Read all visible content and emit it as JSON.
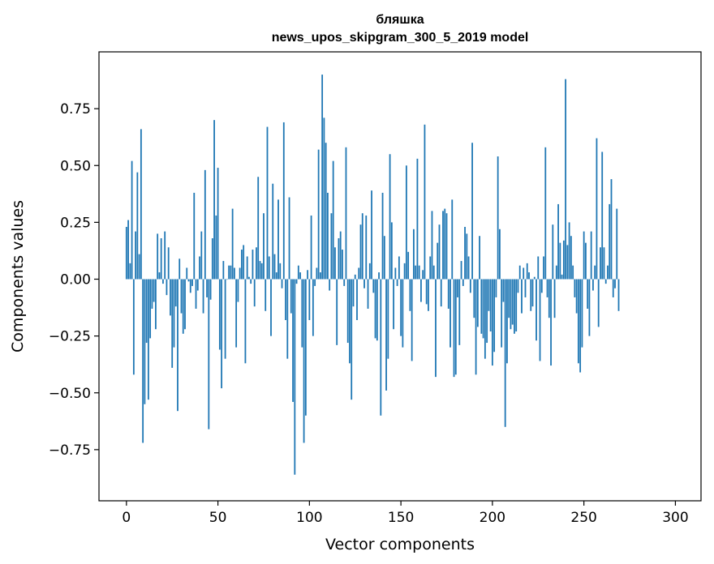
{
  "chart_data": {
    "type": "bar",
    "title_line1": "бляшка",
    "title_line2": "news_upos_skipgram_300_5_2019 model",
    "xlabel": "Vector components",
    "ylabel": "Components values",
    "xlim": [
      -15,
      314
    ],
    "ylim": [
      -0.975,
      1.0
    ],
    "xticks": [
      0,
      50,
      100,
      150,
      200,
      250,
      300
    ],
    "xtick_labels": [
      "0",
      "50",
      "100",
      "150",
      "200",
      "250",
      "300"
    ],
    "yticks": [
      -0.75,
      -0.5,
      -0.25,
      0.0,
      0.25,
      0.5,
      0.75
    ],
    "ytick_labels": [
      "−0.75",
      "−0.50",
      "−0.25",
      "0.00",
      "0.25",
      "0.50",
      "0.75"
    ],
    "bar_color": "#1f77b4",
    "values": [
      0.23,
      0.26,
      0.07,
      0.52,
      -0.42,
      0.21,
      0.47,
      0.11,
      0.66,
      -0.72,
      -0.55,
      -0.28,
      -0.53,
      -0.26,
      -0.13,
      -0.1,
      -0.22,
      0.2,
      0.03,
      0.18,
      -0.02,
      0.21,
      -0.07,
      0.14,
      -0.16,
      -0.39,
      -0.3,
      -0.12,
      -0.58,
      0.09,
      -0.15,
      -0.24,
      -0.22,
      0.05,
      -0.01,
      -0.06,
      -0.03,
      0.38,
      -0.13,
      -0.05,
      0.1,
      0.21,
      -0.15,
      0.48,
      -0.08,
      -0.66,
      -0.09,
      0.18,
      0.7,
      0.28,
      0.49,
      -0.31,
      -0.48,
      0.08,
      -0.35,
      0.0,
      0.06,
      0.06,
      0.31,
      0.05,
      -0.3,
      -0.1,
      0.05,
      0.13,
      0.15,
      -0.37,
      0.1,
      0.01,
      -0.02,
      0.13,
      -0.12,
      0.14,
      0.45,
      0.08,
      0.07,
      0.29,
      -0.14,
      0.67,
      0.1,
      -0.25,
      0.42,
      0.11,
      0.03,
      0.35,
      0.07,
      -0.04,
      0.69,
      -0.18,
      -0.35,
      0.36,
      -0.15,
      -0.54,
      -0.86,
      -0.02,
      0.06,
      0.03,
      -0.3,
      -0.72,
      -0.6,
      0.04,
      -0.18,
      0.28,
      -0.25,
      -0.03,
      0.05,
      0.57,
      0.03,
      0.9,
      0.71,
      0.6,
      0.38,
      -0.05,
      0.29,
      0.52,
      0.14,
      -0.29,
      0.18,
      0.21,
      0.13,
      -0.03,
      0.58,
      -0.28,
      -0.37,
      -0.53,
      -0.12,
      0.02,
      -0.18,
      0.05,
      0.24,
      0.29,
      -0.04,
      0.28,
      -0.13,
      0.07,
      0.39,
      -0.06,
      -0.26,
      -0.27,
      0.03,
      -0.6,
      0.38,
      0.19,
      -0.49,
      -0.35,
      0.55,
      0.25,
      -0.22,
      0.05,
      -0.03,
      0.1,
      -0.25,
      -0.3,
      0.07,
      0.5,
      0.12,
      -0.14,
      -0.36,
      0.22,
      0.06,
      0.53,
      0.06,
      -0.1,
      0.04,
      0.68,
      -0.11,
      -0.14,
      0.1,
      0.3,
      0.06,
      -0.43,
      0.16,
      0.24,
      -0.12,
      0.3,
      0.31,
      0.29,
      -0.13,
      -0.3,
      0.35,
      -0.43,
      -0.42,
      -0.08,
      -0.29,
      0.08,
      -0.03,
      0.23,
      0.2,
      0.1,
      -0.06,
      0.6,
      -0.17,
      -0.42,
      -0.21,
      0.19,
      -0.24,
      -0.26,
      -0.35,
      -0.28,
      -0.14,
      -0.23,
      -0.38,
      -0.32,
      -0.08,
      0.54,
      0.22,
      -0.3,
      -0.1,
      -0.65,
      -0.37,
      -0.17,
      -0.22,
      -0.2,
      -0.24,
      -0.23,
      -0.06,
      0.06,
      -0.15,
      0.05,
      -0.08,
      0.07,
      0.03,
      -0.14,
      -0.12,
      0.01,
      -0.27,
      0.1,
      -0.36,
      -0.06,
      0.1,
      0.58,
      -0.08,
      -0.17,
      -0.38,
      0.24,
      -0.17,
      0.06,
      0.33,
      0.16,
      0.02,
      0.17,
      0.88,
      0.15,
      0.25,
      0.19,
      0.06,
      -0.08,
      -0.15,
      -0.37,
      -0.41,
      -0.3,
      0.21,
      0.16,
      -0.13,
      -0.25,
      0.21,
      -0.05,
      0.06,
      0.62,
      -0.21,
      0.14,
      0.56,
      0.14,
      -0.02,
      0.06,
      0.33,
      0.44,
      -0.08,
      -0.04,
      0.31,
      -0.14
    ]
  }
}
